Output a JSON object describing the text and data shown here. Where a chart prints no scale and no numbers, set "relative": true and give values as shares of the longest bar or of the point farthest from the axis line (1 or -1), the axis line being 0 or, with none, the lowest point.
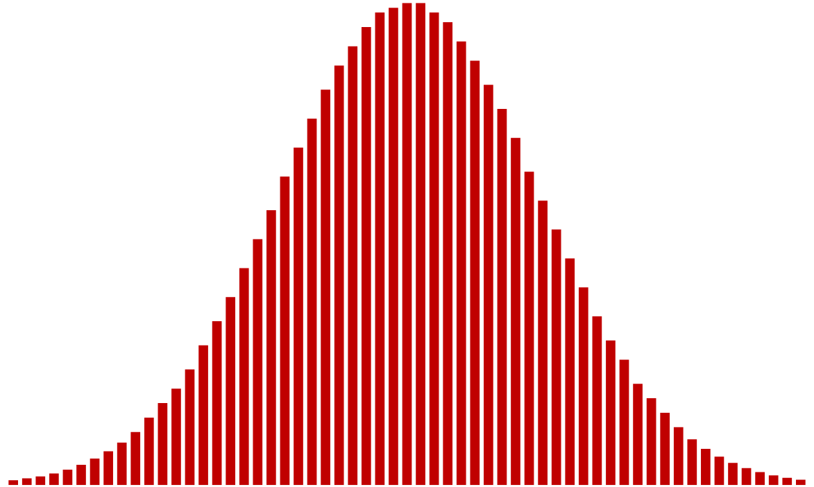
{
  "chart_data": {
    "type": "bar",
    "relative": true,
    "color": "#c00000",
    "categories": [
      null,
      null,
      null,
      null,
      null,
      null,
      null,
      null,
      null,
      null,
      null,
      null,
      null,
      null,
      null,
      null,
      null,
      null,
      null,
      null,
      null,
      null,
      null,
      null,
      null,
      null,
      null,
      null,
      null,
      null,
      null,
      null,
      null,
      null,
      null,
      null,
      null,
      null,
      null,
      null,
      null,
      null,
      null,
      null,
      null,
      null,
      null,
      null,
      null,
      null,
      null,
      null,
      null,
      null,
      null,
      null,
      null,
      null,
      null
    ],
    "values": [
      0.01,
      0.014,
      0.018,
      0.024,
      0.032,
      0.042,
      0.055,
      0.07,
      0.088,
      0.11,
      0.14,
      0.17,
      0.2,
      0.24,
      0.29,
      0.34,
      0.39,
      0.45,
      0.51,
      0.57,
      0.64,
      0.7,
      0.76,
      0.82,
      0.87,
      0.91,
      0.95,
      0.98,
      0.99,
      1.0,
      1.0,
      0.98,
      0.96,
      0.92,
      0.88,
      0.83,
      0.78,
      0.72,
      0.65,
      0.59,
      0.53,
      0.47,
      0.41,
      0.35,
      0.3,
      0.26,
      0.21,
      0.18,
      0.15,
      0.12,
      0.095,
      0.075,
      0.059,
      0.046,
      0.035,
      0.027,
      0.02,
      0.015,
      0.011
    ]
  }
}
